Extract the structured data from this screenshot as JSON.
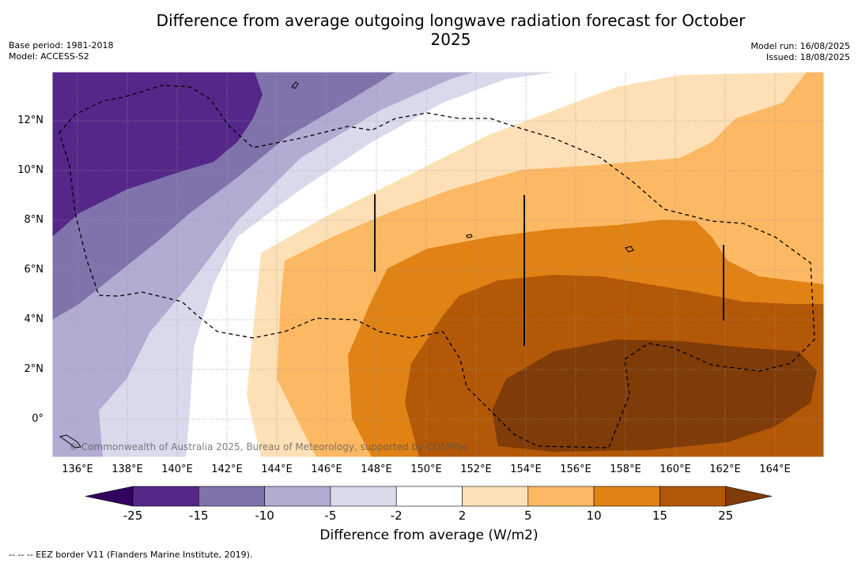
{
  "title": "Difference from average outgoing longwave radiation forecast for October 2025",
  "meta": {
    "base_period": "Base period: 1981-2018",
    "model": "Model: ACCESS-S2",
    "model_run": "Model run: 16/08/2025",
    "issued": "Issued: 18/08/2025"
  },
  "map": {
    "lat_labels": [
      "12°N",
      "10°N",
      "8°N",
      "6°N",
      "4°N",
      "2°N",
      "0°"
    ],
    "lon_labels": [
      "136°E",
      "138°E",
      "140°E",
      "142°E",
      "144°E",
      "146°E",
      "148°E",
      "150°E",
      "152°E",
      "154°E",
      "156°E",
      "158°E",
      "160°E",
      "162°E",
      "164°E"
    ],
    "copyright": "© Commonwealth of Australia 2025, Bureau of Meteorology, supported by COSPPac"
  },
  "colorbar": {
    "ticks": [
      "-25",
      "-15",
      "-10",
      "-5",
      "-2",
      "2",
      "5",
      "10",
      "15",
      "25"
    ],
    "colors": [
      "#32005e",
      "#542788",
      "#8073ac",
      "#b2abd2",
      "#d8daeb",
      "#ffffff",
      "#fee0b6",
      "#fdb863",
      "#e08214",
      "#b35806",
      "#7f3b08"
    ],
    "label": "Difference from average (W/m2)"
  },
  "legend_note": "-- -- -- EEZ border V11 (Flanders Marine Institute, 2019)."
}
